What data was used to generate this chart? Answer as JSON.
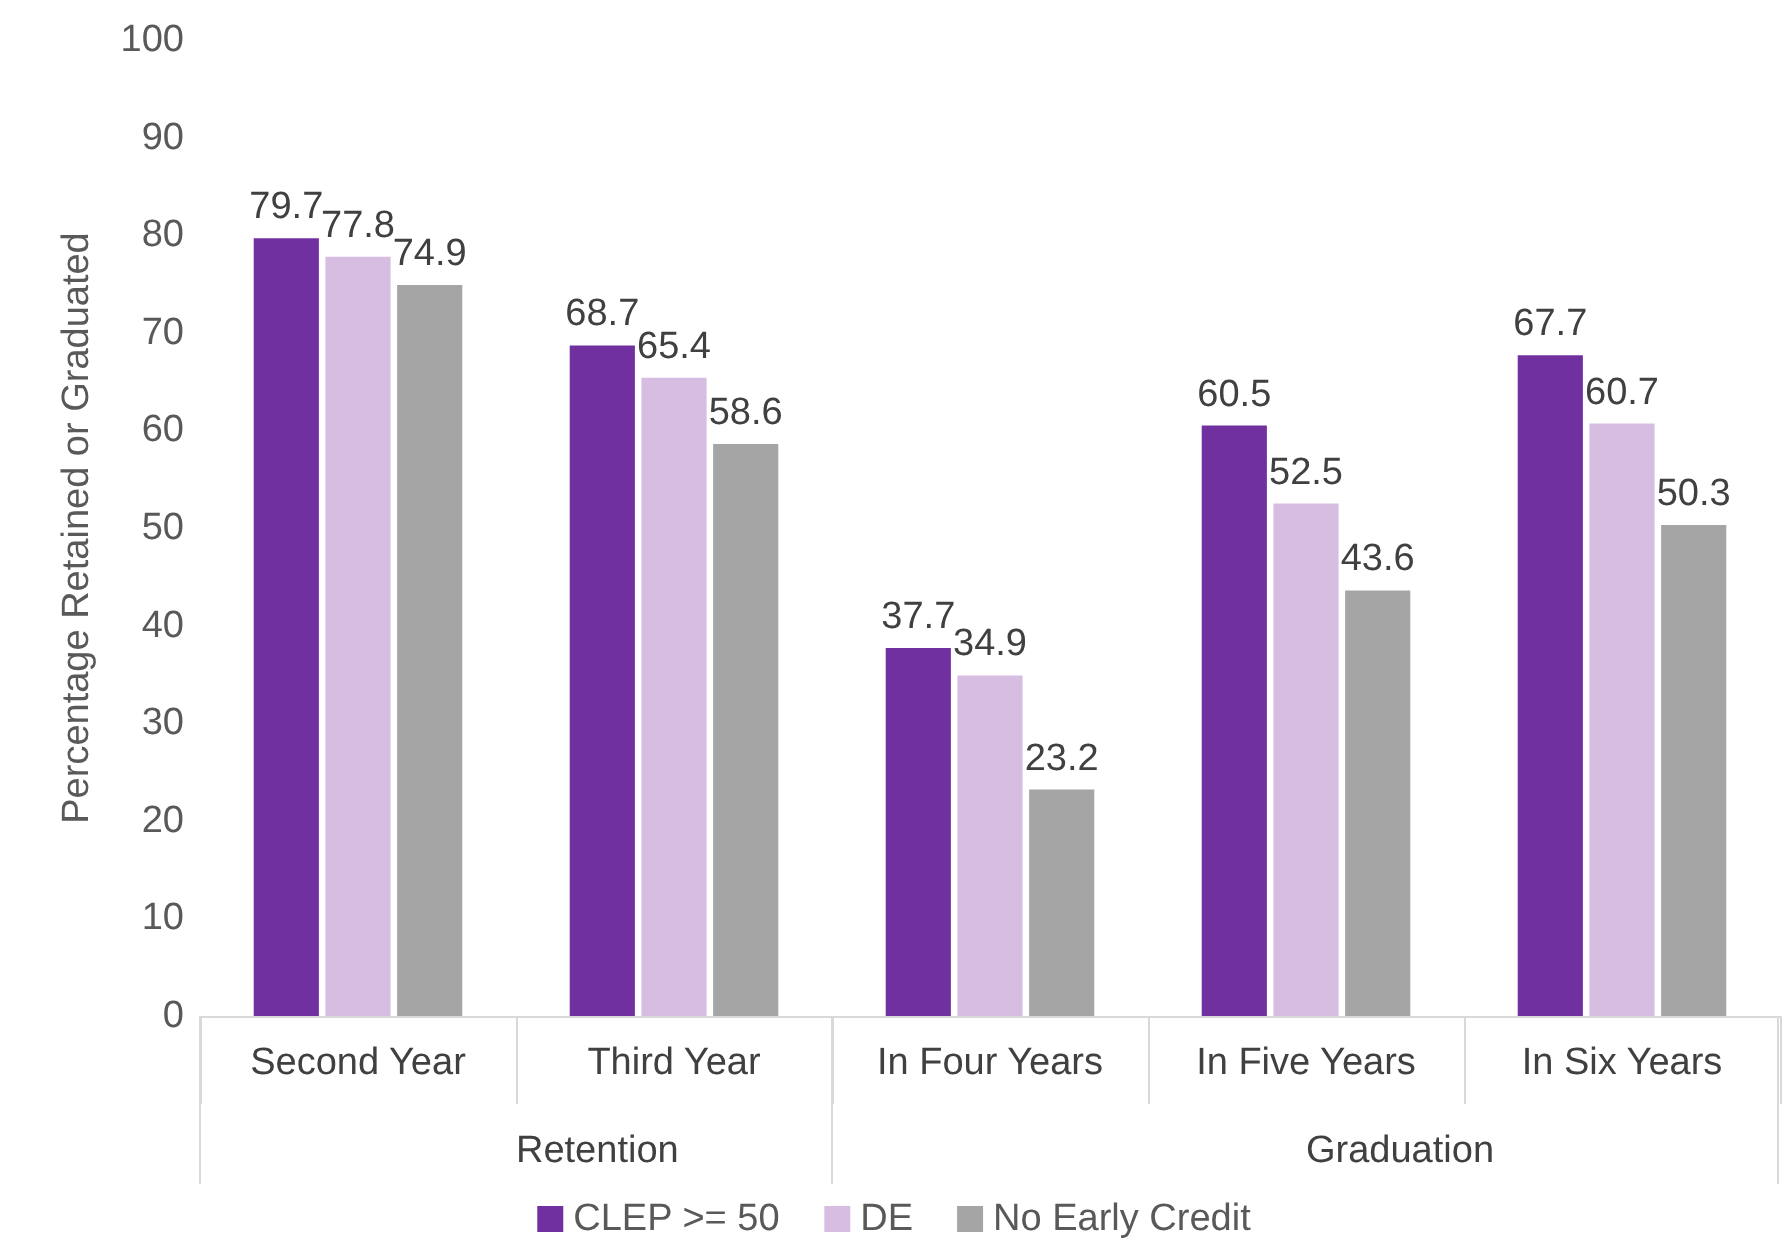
{
  "chart_data": {
    "type": "bar",
    "ylabel": "Percentage Retained or Graduated",
    "categories": [
      "Second Year",
      "Third Year",
      "In Four Years",
      "In Five Years",
      "In Six Years"
    ],
    "series": [
      {
        "name": "CLEP >= 50",
        "color": "#7030a0",
        "values": [
          79.7,
          68.7,
          37.7,
          60.5,
          67.7
        ]
      },
      {
        "name": "DE",
        "color": "#d7bde2",
        "values": [
          77.8,
          65.4,
          34.9,
          52.5,
          60.7
        ]
      },
      {
        "name": "No Early Credit",
        "color": "#a5a5a5",
        "values": [
          74.9,
          58.6,
          23.2,
          43.6,
          50.3
        ]
      }
    ],
    "annotations": [
      "Retention",
      "Graduation"
    ],
    "ylim": [
      0,
      100
    ],
    "yticks": [
      0,
      10,
      20,
      30,
      40,
      50,
      60,
      70,
      80,
      90,
      100
    ],
    "grid": false,
    "legend": "bottom",
    "data_labels": true
  }
}
